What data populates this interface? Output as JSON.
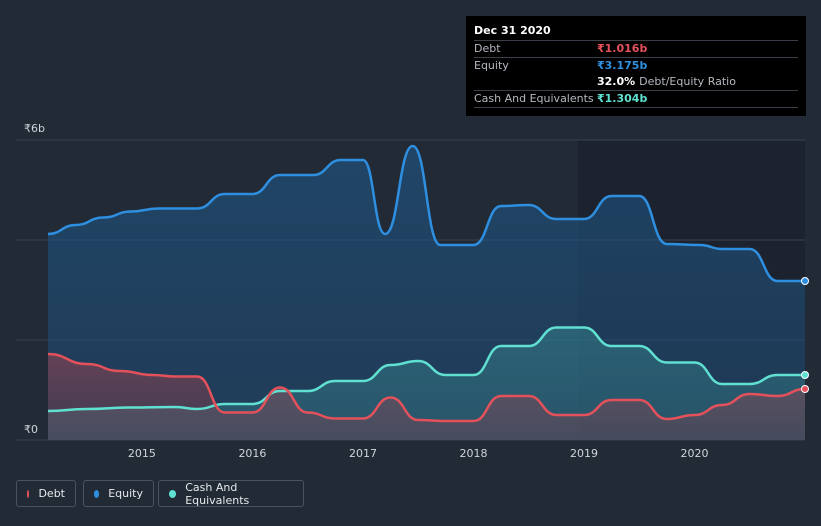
{
  "tooltip": {
    "date": "Dec 31 2020",
    "debt_label": "Debt",
    "debt_value": "₹1.016b",
    "equity_label": "Equity",
    "equity_value": "₹3.175b",
    "ratio_value": "32.0%",
    "ratio_label": "Debt/Equity Ratio",
    "cash_label": "Cash And Equivalents",
    "cash_value": "₹1.304b"
  },
  "legend": {
    "debt": "Debt",
    "equity": "Equity",
    "cash": "Cash And Equivalents"
  },
  "colors": {
    "debt": "#e4515b",
    "equity": "#2e8fe0",
    "cash": "#5fe0d1",
    "background": "#222a36"
  },
  "chart_data": {
    "type": "area",
    "title": "",
    "xlabel": "",
    "ylabel": "",
    "ylim": [
      0,
      6
    ],
    "xlim": [
      2014.15,
      2021.0
    ],
    "y_tick_labels": [
      {
        "value": 6,
        "label": "₹6b"
      },
      {
        "value": 0,
        "label": "₹0"
      }
    ],
    "gridlines_y": [
      2,
      4,
      6
    ],
    "x_ticks": [
      {
        "value": 2015,
        "label": "2015"
      },
      {
        "value": 2016,
        "label": "2016"
      },
      {
        "value": 2017,
        "label": "2017"
      },
      {
        "value": 2018,
        "label": "2018"
      },
      {
        "value": 2019,
        "label": "2019"
      },
      {
        "value": 2020,
        "label": "2020"
      }
    ],
    "series": [
      {
        "name": "Equity",
        "key": "equity",
        "points": [
          [
            2014.15,
            4.12
          ],
          [
            2014.4,
            4.3
          ],
          [
            2014.65,
            4.45
          ],
          [
            2014.9,
            4.57
          ],
          [
            2015.15,
            4.63
          ],
          [
            2015.5,
            4.63
          ],
          [
            2015.75,
            4.92
          ],
          [
            2016.0,
            4.92
          ],
          [
            2016.25,
            5.3
          ],
          [
            2016.55,
            5.3
          ],
          [
            2016.8,
            5.6
          ],
          [
            2017.0,
            5.6
          ],
          [
            2017.2,
            4.12
          ],
          [
            2017.45,
            5.88
          ],
          [
            2017.7,
            3.9
          ],
          [
            2018.0,
            3.9
          ],
          [
            2018.25,
            4.68
          ],
          [
            2018.5,
            4.7
          ],
          [
            2018.75,
            4.42
          ],
          [
            2019.0,
            4.42
          ],
          [
            2019.25,
            4.88
          ],
          [
            2019.5,
            4.88
          ],
          [
            2019.75,
            3.92
          ],
          [
            2020.05,
            3.9
          ],
          [
            2020.25,
            3.82
          ],
          [
            2020.5,
            3.82
          ],
          [
            2020.75,
            3.18
          ],
          [
            2021.0,
            3.18
          ]
        ]
      },
      {
        "name": "Cash And Equivalents",
        "key": "cash",
        "points": [
          [
            2014.15,
            0.58
          ],
          [
            2014.5,
            0.62
          ],
          [
            2014.9,
            0.65
          ],
          [
            2015.3,
            0.66
          ],
          [
            2015.5,
            0.62
          ],
          [
            2015.75,
            0.72
          ],
          [
            2016.0,
            0.72
          ],
          [
            2016.25,
            0.98
          ],
          [
            2016.5,
            0.98
          ],
          [
            2016.75,
            1.18
          ],
          [
            2017.0,
            1.18
          ],
          [
            2017.25,
            1.5
          ],
          [
            2017.5,
            1.58
          ],
          [
            2017.75,
            1.3
          ],
          [
            2018.0,
            1.3
          ],
          [
            2018.25,
            1.88
          ],
          [
            2018.5,
            1.88
          ],
          [
            2018.75,
            2.25
          ],
          [
            2019.0,
            2.25
          ],
          [
            2019.25,
            1.88
          ],
          [
            2019.5,
            1.88
          ],
          [
            2019.75,
            1.55
          ],
          [
            2020.0,
            1.55
          ],
          [
            2020.25,
            1.12
          ],
          [
            2020.5,
            1.12
          ],
          [
            2020.75,
            1.3
          ],
          [
            2021.0,
            1.3
          ]
        ]
      },
      {
        "name": "Debt",
        "key": "debt",
        "points": [
          [
            2014.15,
            1.72
          ],
          [
            2014.5,
            1.52
          ],
          [
            2014.8,
            1.38
          ],
          [
            2015.1,
            1.3
          ],
          [
            2015.3,
            1.27
          ],
          [
            2015.5,
            1.27
          ],
          [
            2015.75,
            0.55
          ],
          [
            2016.0,
            0.55
          ],
          [
            2016.25,
            1.05
          ],
          [
            2016.5,
            0.55
          ],
          [
            2016.75,
            0.43
          ],
          [
            2017.0,
            0.43
          ],
          [
            2017.25,
            0.85
          ],
          [
            2017.5,
            0.4
          ],
          [
            2017.75,
            0.38
          ],
          [
            2018.0,
            0.38
          ],
          [
            2018.25,
            0.88
          ],
          [
            2018.5,
            0.88
          ],
          [
            2018.75,
            0.5
          ],
          [
            2019.0,
            0.5
          ],
          [
            2019.25,
            0.8
          ],
          [
            2019.5,
            0.8
          ],
          [
            2019.75,
            0.42
          ],
          [
            2020.0,
            0.5
          ],
          [
            2020.25,
            0.7
          ],
          [
            2020.5,
            0.92
          ],
          [
            2020.75,
            0.88
          ],
          [
            2021.0,
            1.02
          ]
        ]
      }
    ]
  }
}
